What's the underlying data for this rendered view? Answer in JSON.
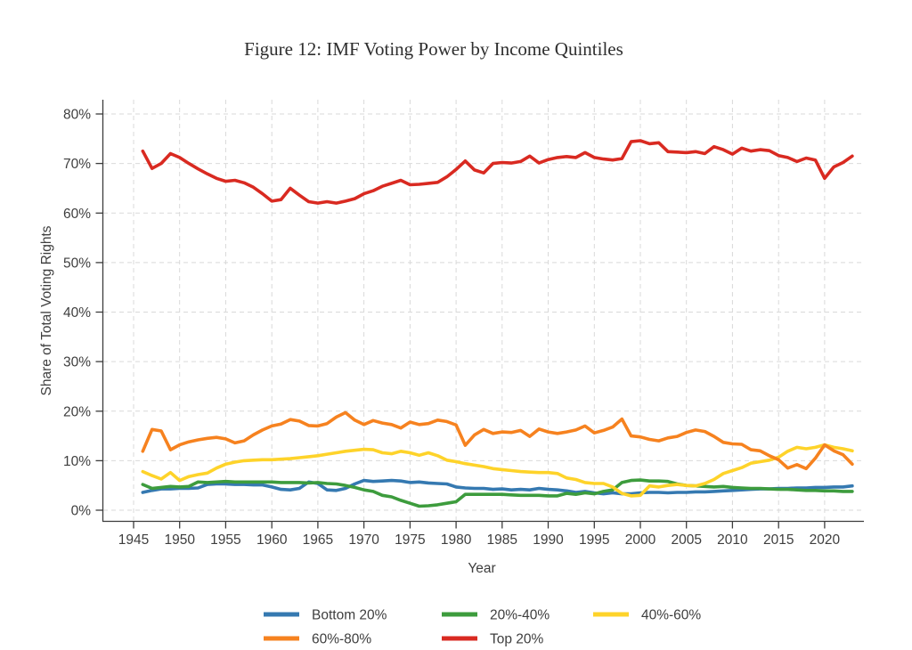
{
  "title": "Figure 12: IMF Voting Power by Income Quintiles",
  "chart_data": {
    "type": "line",
    "title": "Figure 12: IMF Voting Power by Income Quintiles",
    "xlabel": "Year",
    "ylabel": "Share of Total Voting Rights",
    "xlim": [
      1944.5,
      2024.5
    ],
    "ylim": [
      0,
      80
    ],
    "grid": "both-dashed",
    "legend_position": "bottom",
    "y_tick_suffix": "%",
    "y_ticks": [
      0,
      10,
      20,
      30,
      40,
      50,
      60,
      70,
      80
    ],
    "x_ticks": [
      1945,
      1950,
      1955,
      1960,
      1965,
      1970,
      1975,
      1980,
      1985,
      1990,
      1995,
      2000,
      2005,
      2010,
      2015,
      2020
    ],
    "x": [
      1946,
      1947,
      1948,
      1949,
      1950,
      1951,
      1952,
      1953,
      1954,
      1955,
      1956,
      1957,
      1958,
      1959,
      1960,
      1961,
      1962,
      1963,
      1964,
      1965,
      1966,
      1967,
      1968,
      1969,
      1970,
      1971,
      1972,
      1973,
      1974,
      1975,
      1976,
      1977,
      1978,
      1979,
      1980,
      1981,
      1982,
      1983,
      1984,
      1985,
      1986,
      1987,
      1988,
      1989,
      1990,
      1991,
      1992,
      1993,
      1994,
      1995,
      1996,
      1997,
      1998,
      1999,
      2000,
      2001,
      2002,
      2003,
      2004,
      2005,
      2006,
      2007,
      2008,
      2009,
      2010,
      2011,
      2012,
      2013,
      2014,
      2015,
      2016,
      2017,
      2018,
      2019,
      2020,
      2021,
      2022,
      2023
    ],
    "series": [
      {
        "name": "Bottom 20%",
        "color": "#3579b1",
        "values": [
          3.6,
          4.0,
          4.3,
          4.3,
          4.4,
          4.4,
          4.5,
          5.2,
          5.3,
          5.3,
          5.2,
          5.2,
          5.1,
          5.1,
          4.7,
          4.2,
          4.1,
          4.4,
          5.7,
          5.4,
          4.1,
          4.0,
          4.4,
          5.3,
          6.0,
          5.8,
          5.9,
          6.0,
          5.9,
          5.6,
          5.7,
          5.5,
          5.4,
          5.3,
          4.7,
          4.5,
          4.4,
          4.4,
          4.2,
          4.3,
          4.1,
          4.2,
          4.1,
          4.4,
          4.2,
          4.1,
          3.9,
          3.6,
          3.8,
          3.5,
          3.3,
          3.5,
          3.3,
          3.3,
          3.5,
          3.6,
          3.6,
          3.5,
          3.6,
          3.6,
          3.7,
          3.7,
          3.8,
          3.9,
          4.0,
          4.1,
          4.2,
          4.3,
          4.3,
          4.4,
          4.4,
          4.5,
          4.5,
          4.6,
          4.6,
          4.7,
          4.7,
          4.9
        ]
      },
      {
        "name": "20%-40%",
        "color": "#3d9c3d",
        "values": [
          5.2,
          4.4,
          4.6,
          4.8,
          4.7,
          4.8,
          5.7,
          5.6,
          5.7,
          5.8,
          5.7,
          5.7,
          5.7,
          5.7,
          5.7,
          5.6,
          5.6,
          5.6,
          5.5,
          5.6,
          5.4,
          5.3,
          5.0,
          4.6,
          4.1,
          3.8,
          3.0,
          2.7,
          2.0,
          1.4,
          0.8,
          0.9,
          1.1,
          1.4,
          1.7,
          3.2,
          3.2,
          3.2,
          3.2,
          3.2,
          3.1,
          3.0,
          3.0,
          3.0,
          2.9,
          2.9,
          3.4,
          3.2,
          3.5,
          3.3,
          3.8,
          4.1,
          5.6,
          6.0,
          6.1,
          5.9,
          5.9,
          5.8,
          5.3,
          5.0,
          4.9,
          4.8,
          4.7,
          4.8,
          4.6,
          4.5,
          4.4,
          4.4,
          4.3,
          4.2,
          4.2,
          4.1,
          4.0,
          4.0,
          3.9,
          3.9,
          3.8,
          3.8
        ]
      },
      {
        "name": "40%-60%",
        "color": "#fed32a",
        "values": [
          7.8,
          7.0,
          6.3,
          7.6,
          6.0,
          6.8,
          7.2,
          7.5,
          8.5,
          9.3,
          9.7,
          10.0,
          10.1,
          10.2,
          10.2,
          10.3,
          10.4,
          10.6,
          10.8,
          11.0,
          11.3,
          11.6,
          11.9,
          12.1,
          12.3,
          12.2,
          11.6,
          11.4,
          11.9,
          11.6,
          11.1,
          11.6,
          11.0,
          10.1,
          9.8,
          9.4,
          9.1,
          8.8,
          8.4,
          8.2,
          8.0,
          7.8,
          7.7,
          7.6,
          7.6,
          7.4,
          6.5,
          6.2,
          5.6,
          5.4,
          5.4,
          4.7,
          3.4,
          2.9,
          3.0,
          4.9,
          4.7,
          5.0,
          5.2,
          5.0,
          4.9,
          5.4,
          6.2,
          7.4,
          8.0,
          8.6,
          9.5,
          9.8,
          10.1,
          10.7,
          11.9,
          12.7,
          12.4,
          12.7,
          13.2,
          12.7,
          12.4,
          12.0
        ]
      },
      {
        "name": "60%-80%",
        "color": "#f6821f",
        "values": [
          11.9,
          16.3,
          16.0,
          12.2,
          13.2,
          13.8,
          14.2,
          14.5,
          14.7,
          14.4,
          13.6,
          14.0,
          15.2,
          16.2,
          17.0,
          17.4,
          18.3,
          18.0,
          17.1,
          17.0,
          17.5,
          18.8,
          19.7,
          18.2,
          17.3,
          18.1,
          17.6,
          17.3,
          16.6,
          17.8,
          17.3,
          17.5,
          18.2,
          17.9,
          17.2,
          13.1,
          15.2,
          16.3,
          15.5,
          15.8,
          15.7,
          16.1,
          14.9,
          16.4,
          15.8,
          15.5,
          15.8,
          16.2,
          17.0,
          15.6,
          16.1,
          16.8,
          18.4,
          15.0,
          14.8,
          14.3,
          14.0,
          14.6,
          14.9,
          15.7,
          16.2,
          15.9,
          14.9,
          13.7,
          13.4,
          13.3,
          12.2,
          12.0,
          11.0,
          10.2,
          8.5,
          9.2,
          8.4,
          10.5,
          13.2,
          12.0,
          11.2,
          9.3
        ]
      },
      {
        "name": "Top 20%",
        "color": "#d92a21",
        "values": [
          72.5,
          69.0,
          70.0,
          72.0,
          71.2,
          70.0,
          68.9,
          67.9,
          67.0,
          66.4,
          66.6,
          66.1,
          65.2,
          63.9,
          62.4,
          62.7,
          65.0,
          63.6,
          62.3,
          62.0,
          62.3,
          62.0,
          62.4,
          62.9,
          63.9,
          64.5,
          65.4,
          66.0,
          66.6,
          65.7,
          65.8,
          66.0,
          66.2,
          67.3,
          68.8,
          70.5,
          68.7,
          68.1,
          70.0,
          70.2,
          70.1,
          70.4,
          71.5,
          70.1,
          70.8,
          71.2,
          71.4,
          71.2,
          72.2,
          71.2,
          70.9,
          70.7,
          71.0,
          74.4,
          74.6,
          74.0,
          74.2,
          72.4,
          72.3,
          72.2,
          72.4,
          72.0,
          73.4,
          72.8,
          71.9,
          73.1,
          72.5,
          72.8,
          72.6,
          71.6,
          71.2,
          70.4,
          71.1,
          70.7,
          67.0,
          69.3,
          70.2,
          71.5
        ]
      }
    ]
  },
  "legend": {
    "rows": [
      [
        "Bottom 20%",
        "20%-40%",
        "40%-60%"
      ],
      [
        "60%-80%",
        "Top 20%"
      ]
    ]
  }
}
